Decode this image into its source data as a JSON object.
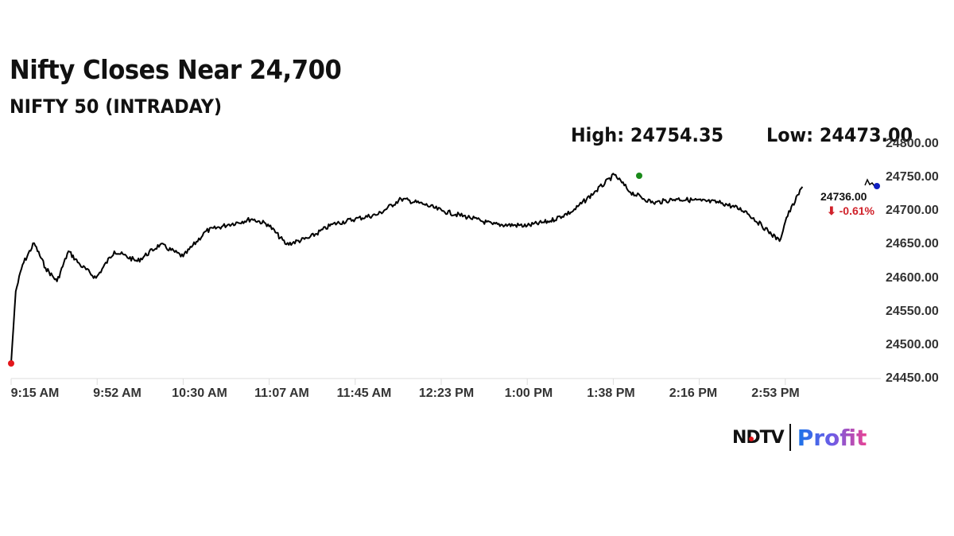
{
  "header": {
    "title": "Nifty Closes Near 24,700",
    "subtitle": "NIFTY 50 (INTRADAY)",
    "high_label": "High: 24754.35",
    "low_label": "Low: 24473.00"
  },
  "last": {
    "value": "24736.00",
    "change": "⬇ -0.61%",
    "change_color": "#d0212a"
  },
  "markers": {
    "low_color": "#e3161b",
    "high_color": "#1a8a1a",
    "prev_close_color": "#1020c0"
  },
  "logo": {
    "brand": "NDTV",
    "product": "Profit"
  },
  "chart_data": {
    "type": "line",
    "title": "Nifty Closes Near 24,700",
    "subtitle": "NIFTY 50 (INTRADAY)",
    "xlabel": "",
    "ylabel": "",
    "ylim": [
      24450,
      24800
    ],
    "grid": false,
    "yaxis_position": "right",
    "y_ticks": [
      "24800.00",
      "24750.00",
      "24700.00",
      "24650.00",
      "24600.00",
      "24550.00",
      "24500.00",
      "24450.00"
    ],
    "x_ticks": [
      "9:15 AM",
      "9:52 AM",
      "10:30 AM",
      "11:07 AM",
      "11:45 AM",
      "12:23 PM",
      "1:00 PM",
      "1:38 PM",
      "2:16 PM",
      "2:53 PM"
    ],
    "annotations": {
      "high": {
        "label": "High: 24754.35",
        "value": 24754.35,
        "time": "~1:38 PM"
      },
      "low": {
        "label": "Low: 24473.00",
        "value": 24473.0,
        "time": "9:15 AM"
      },
      "last": {
        "value": 24736.0,
        "change_pct": -0.61
      }
    },
    "series": [
      {
        "name": "NIFTY 50",
        "x": [
          "9:15 AM",
          "9:17 AM",
          "9:20 AM",
          "9:25 AM",
          "9:30 AM",
          "9:35 AM",
          "9:40 AM",
          "9:45 AM",
          "9:52 AM",
          "10:00 AM",
          "10:10 AM",
          "10:20 AM",
          "10:30 AM",
          "10:40 AM",
          "10:50 AM",
          "11:00 AM",
          "11:07 AM",
          "11:15 AM",
          "11:25 AM",
          "11:35 AM",
          "11:45 AM",
          "11:55 AM",
          "12:05 PM",
          "12:15 PM",
          "12:23 PM",
          "12:35 PM",
          "12:45 PM",
          "1:00 PM",
          "1:10 PM",
          "1:20 PM",
          "1:30 PM",
          "1:38 PM",
          "1:45 PM",
          "1:55 PM",
          "2:05 PM",
          "2:16 PM",
          "2:25 PM",
          "2:35 PM",
          "2:45 PM",
          "2:50 PM",
          "2:53 PM",
          "3:00 PM"
        ],
        "values": [
          24473,
          24580,
          24620,
          24652,
          24615,
          24595,
          24640,
          24620,
          24600,
          24640,
          24625,
          24650,
          24632,
          24670,
          24680,
          24688,
          24680,
          24650,
          24660,
          24680,
          24688,
          24695,
          24718,
          24710,
          24700,
          24690,
          24680,
          24678,
          24685,
          24700,
          24730,
          24754,
          24728,
          24712,
          24718,
          24715,
          24712,
          24700,
          24670,
          24655,
          24690,
          24736
        ]
      }
    ]
  }
}
